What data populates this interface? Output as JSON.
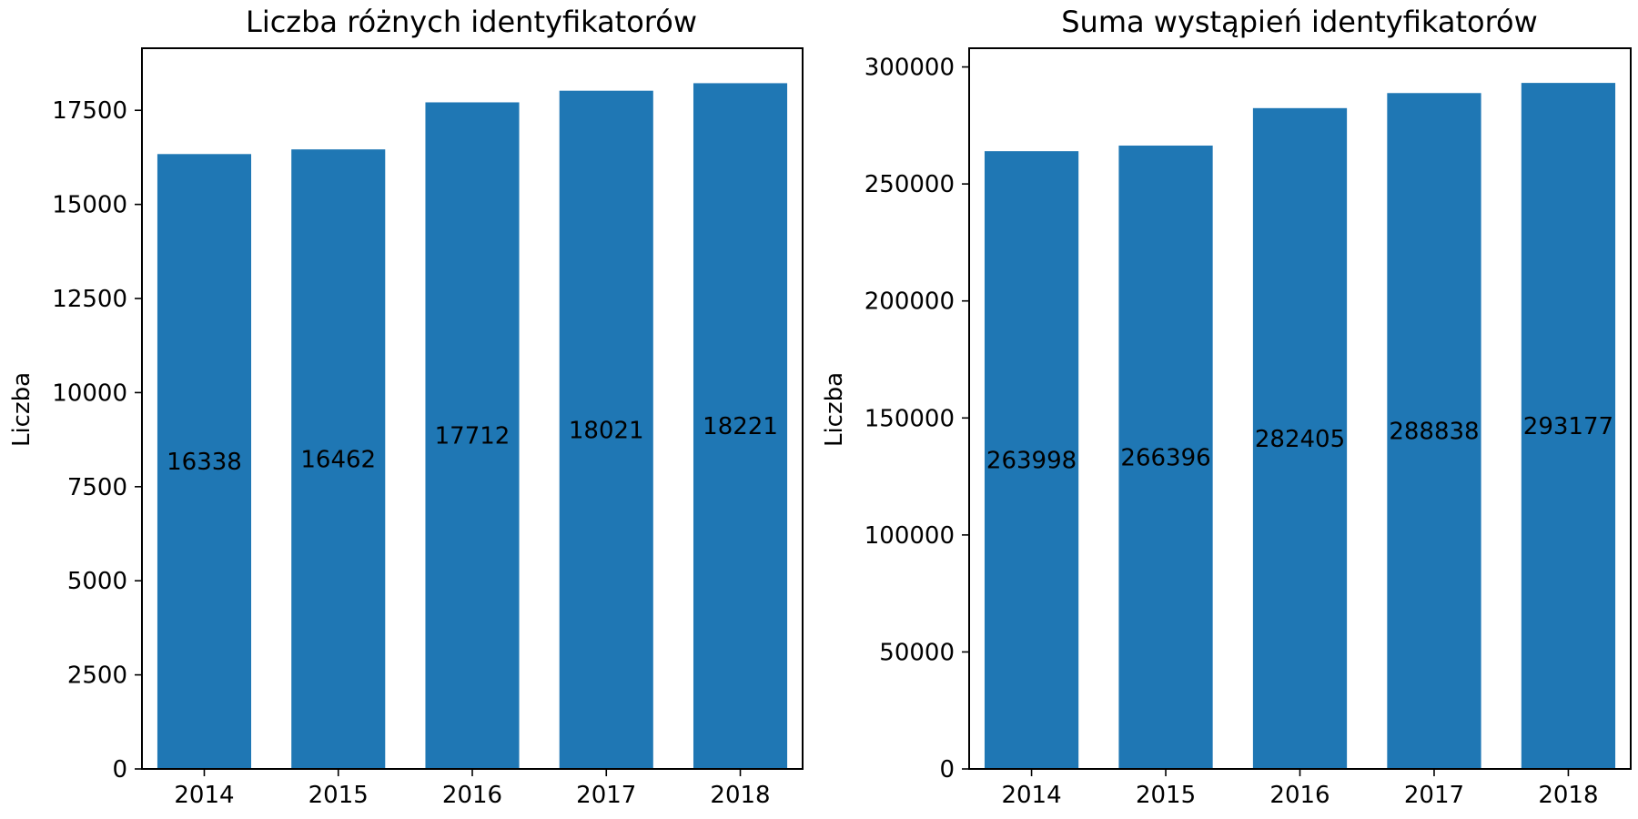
{
  "chart_data": [
    {
      "type": "bar",
      "title": "Liczba różnych identyfikatorów",
      "xlabel": "",
      "ylabel": "Liczba",
      "categories": [
        "2014",
        "2015",
        "2016",
        "2017",
        "2018"
      ],
      "values": [
        16338,
        16462,
        17712,
        18021,
        18221
      ],
      "data_labels": [
        "16338",
        "16462",
        "17712",
        "18021",
        "18221"
      ],
      "ylim": [
        0,
        19150
      ],
      "yticks": [
        0,
        2500,
        5000,
        7500,
        10000,
        12500,
        15000,
        17500
      ],
      "ytick_labels": [
        "0",
        "2500",
        "5000",
        "7500",
        "10000",
        "12500",
        "15000",
        "17500"
      ],
      "grid": false,
      "bar_color": "#1f77b4"
    },
    {
      "type": "bar",
      "title": "Suma wystąpień identyfikatorów",
      "xlabel": "",
      "ylabel": "Liczba",
      "categories": [
        "2014",
        "2015",
        "2016",
        "2017",
        "2018"
      ],
      "values": [
        263998,
        266396,
        282405,
        288838,
        293177
      ],
      "data_labels": [
        "263998",
        "266396",
        "282405",
        "288838",
        "293177"
      ],
      "ylim": [
        0,
        308000
      ],
      "yticks": [
        0,
        50000,
        100000,
        150000,
        200000,
        250000,
        300000
      ],
      "ytick_labels": [
        "0",
        "50000",
        "100000",
        "150000",
        "200000",
        "250000",
        "300000"
      ],
      "grid": false,
      "bar_color": "#1f77b4"
    }
  ]
}
